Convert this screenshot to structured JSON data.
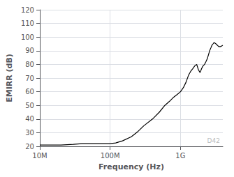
{
  "chart_data": {
    "type": "line",
    "xlabel": "Frequency (Hz)",
    "ylabel": "EMIRR (dB)",
    "annotations": [
      "D42"
    ],
    "log": "x",
    "grid": true,
    "color": "#000000",
    "xlim": [
      10000000.0,
      4000000000.0
    ],
    "xticks": [
      {
        "value": 10000000.0,
        "label": "10M"
      },
      {
        "value": 100000000.0,
        "label": "100M"
      },
      {
        "value": 1000000000.0,
        "label": "1G"
      }
    ],
    "ylim": [
      20,
      120
    ],
    "yticks": [
      20,
      30,
      40,
      50,
      60,
      70,
      80,
      90,
      100,
      110,
      120
    ],
    "x": [
      10000000.0,
      15000000.0,
      20000000.0,
      30000000.0,
      40000000.0,
      50000000.0,
      60000000.0,
      70000000.0,
      80000000.0,
      90000000.0,
      100000000.0,
      120000000.0,
      150000000.0,
      200000000.0,
      250000000.0,
      300000000.0,
      400000000.0,
      500000000.0,
      600000000.0,
      700000000.0,
      800000000.0,
      900000000.0,
      1000000000.0,
      1100000000.0,
      1200000000.0,
      1300000000.0,
      1400000000.0,
      1500000000.0,
      1600000000.0,
      1700000000.0,
      1800000000.0,
      1900000000.0,
      2000000000.0,
      2100000000.0,
      2200000000.0,
      2300000000.0,
      2400000000.0,
      2500000000.0,
      2600000000.0,
      2700000000.0,
      2800000000.0,
      2900000000.0,
      3000000000.0,
      3200000000.0,
      3500000000.0,
      3700000000.0,
      4000000000.0
    ],
    "values": [
      21,
      21,
      21,
      21.5,
      22,
      22,
      22,
      22,
      22,
      22,
      22,
      22.5,
      24,
      27,
      31,
      35,
      40,
      45,
      50,
      53,
      56,
      58,
      60,
      63,
      67,
      72,
      75,
      77,
      79,
      80,
      76,
      74,
      77,
      79,
      80,
      82,
      84,
      87,
      90,
      92,
      94,
      95,
      96,
      95,
      93,
      93,
      94
    ]
  }
}
